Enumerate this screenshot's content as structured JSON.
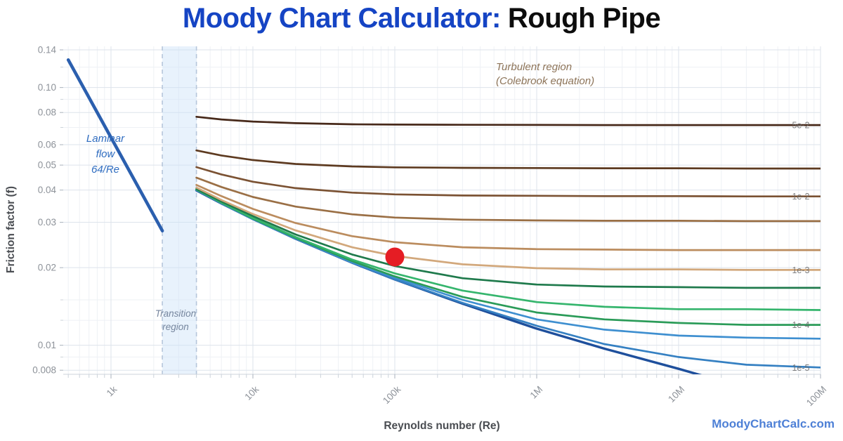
{
  "title": {
    "prefix": "Moody Chart Calculator:",
    "suffix": "Rough Pipe"
  },
  "watermark": {
    "text": "MoodyChartCalc.com"
  },
  "axes": {
    "x_label": "Reynolds number (Re)",
    "y_label": "Friction factor (f)"
  },
  "annotations": {
    "turbulent": {
      "line1": "Turbulent region",
      "line2": "(Colebrook equation)",
      "color": "#8d7459"
    },
    "laminar": {
      "line1": "Laminar",
      "line2": "flow",
      "line3": "64/Re",
      "color": "#2e6cc0"
    },
    "transition": {
      "line1": "Transition",
      "line2": "region",
      "color": "#76869e"
    }
  },
  "chart_data": {
    "type": "line",
    "title": "Moody Chart Calculator: Rough Pipe",
    "xlabel": "Reynolds number (Re)",
    "ylabel": "Friction factor (f)",
    "x_axis": {
      "scale": "log",
      "min": 500,
      "max": 110000000,
      "ticks": [
        {
          "label": "1k",
          "value": 1000
        },
        {
          "label": "10k",
          "value": 10000
        },
        {
          "label": "100k",
          "value": 100000
        },
        {
          "label": "1M",
          "value": 1000000
        },
        {
          "label": "10M",
          "value": 10000000
        },
        {
          "label": "100M",
          "value": 100000000
        }
      ],
      "minor_mantissas": [
        2,
        3,
        4,
        5,
        6,
        7,
        8,
        9
      ]
    },
    "y_axis": {
      "scale": "log",
      "min": 0.0077,
      "max": 0.145,
      "ticks": [
        {
          "label": "0.14",
          "value": 0.14
        },
        {
          "label": "0.10",
          "value": 0.1
        },
        {
          "label": "0.08",
          "value": 0.08
        },
        {
          "label": "0.06",
          "value": 0.06
        },
        {
          "label": "0.05",
          "value": 0.05
        },
        {
          "label": "0.04",
          "value": 0.04
        },
        {
          "label": "0.03",
          "value": 0.03
        },
        {
          "label": "0.02",
          "value": 0.02
        },
        {
          "label": "0.01",
          "value": 0.01
        },
        {
          "label": "0.008",
          "value": 0.008
        }
      ],
      "minor_gridlines": [
        0.12,
        0.09,
        0.07,
        0.015,
        0.0125,
        0.009
      ]
    },
    "laminar_line": {
      "name": "laminar-64-over-Re",
      "color": "#2b5fae",
      "width": 4.6,
      "points": [
        [
          500,
          0.128
        ],
        [
          2300,
          0.0278
        ]
      ]
    },
    "transition_band": {
      "re_start": 2300,
      "re_end": 4000,
      "fill": "rgba(205,226,248,0.45)",
      "border_color": "#b6c6db"
    },
    "series": [
      {
        "name": "rel-roughness-5e-2",
        "roughness": 0.05,
        "label": "5e-2",
        "color": "#47291a",
        "points": [
          [
            4000,
            0.077
          ],
          [
            6000,
            0.0752
          ],
          [
            10000,
            0.0738
          ],
          [
            20000,
            0.0727
          ],
          [
            50000,
            0.072
          ],
          [
            100000,
            0.0718
          ],
          [
            300000,
            0.0717
          ],
          [
            1000000,
            0.0716
          ],
          [
            3000000,
            0.0715
          ],
          [
            10000000,
            0.0715
          ],
          [
            30000000,
            0.0715
          ],
          [
            100000000,
            0.0715
          ]
        ]
      },
      {
        "name": "rel-roughness-2e-2",
        "roughness": 0.02,
        "label": "",
        "color": "#5d3a20",
        "points": [
          [
            4000,
            0.057
          ],
          [
            6000,
            0.0545
          ],
          [
            10000,
            0.0523
          ],
          [
            20000,
            0.0505
          ],
          [
            50000,
            0.0494
          ],
          [
            100000,
            0.049
          ],
          [
            300000,
            0.0488
          ],
          [
            1000000,
            0.0487
          ],
          [
            3000000,
            0.0486
          ],
          [
            10000000,
            0.0486
          ],
          [
            30000000,
            0.0485
          ],
          [
            100000000,
            0.0485
          ]
        ]
      },
      {
        "name": "rel-roughness-1e-2",
        "roughness": 0.01,
        "label": "1e-2",
        "color": "#7b5233",
        "points": [
          [
            4000,
            0.0491
          ],
          [
            6000,
            0.046
          ],
          [
            10000,
            0.0431
          ],
          [
            20000,
            0.0407
          ],
          [
            50000,
            0.0391
          ],
          [
            100000,
            0.0385
          ],
          [
            300000,
            0.0381
          ],
          [
            1000000,
            0.038
          ],
          [
            3000000,
            0.0379
          ],
          [
            10000000,
            0.0379
          ],
          [
            30000000,
            0.0378
          ],
          [
            100000000,
            0.0378
          ]
        ]
      },
      {
        "name": "rel-roughness-5e-3",
        "roughness": 0.005,
        "label": "",
        "color": "#9a6f45",
        "points": [
          [
            4000,
            0.0447
          ],
          [
            6000,
            0.0411
          ],
          [
            10000,
            0.0376
          ],
          [
            20000,
            0.0345
          ],
          [
            50000,
            0.0322
          ],
          [
            100000,
            0.0313
          ],
          [
            300000,
            0.0307
          ],
          [
            1000000,
            0.0305
          ],
          [
            3000000,
            0.0304
          ],
          [
            10000000,
            0.0304
          ],
          [
            30000000,
            0.0303
          ],
          [
            100000000,
            0.0303
          ]
        ]
      },
      {
        "name": "rel-roughness-2e-3",
        "roughness": 0.002,
        "label": "",
        "color": "#bb8c5e",
        "points": [
          [
            4000,
            0.0419
          ],
          [
            6000,
            0.0379
          ],
          [
            10000,
            0.0338
          ],
          [
            20000,
            0.0298
          ],
          [
            50000,
            0.0265
          ],
          [
            100000,
            0.0251
          ],
          [
            300000,
            0.024
          ],
          [
            1000000,
            0.0236
          ],
          [
            3000000,
            0.0235
          ],
          [
            10000000,
            0.0234
          ],
          [
            30000000,
            0.0234
          ],
          [
            100000000,
            0.0234
          ]
        ]
      },
      {
        "name": "rel-roughness-1e-3",
        "roughness": 0.001,
        "label": "1e-3",
        "color": "#d2a87c",
        "points": [
          [
            4000,
            0.0409
          ],
          [
            6000,
            0.0366
          ],
          [
            10000,
            0.0323
          ],
          [
            20000,
            0.0279
          ],
          [
            50000,
            0.024
          ],
          [
            100000,
            0.0222
          ],
          [
            300000,
            0.0206
          ],
          [
            1000000,
            0.0199
          ],
          [
            3000000,
            0.0197
          ],
          [
            10000000,
            0.0197
          ],
          [
            30000000,
            0.0196
          ],
          [
            100000000,
            0.0196
          ]
        ]
      },
      {
        "name": "rel-roughness-5e-4",
        "roughness": 0.0005,
        "label": "",
        "color": "#1f7a4c",
        "points": [
          [
            4000,
            0.0404
          ],
          [
            6000,
            0.0361
          ],
          [
            10000,
            0.0317
          ],
          [
            20000,
            0.0269
          ],
          [
            50000,
            0.0225
          ],
          [
            100000,
            0.0203
          ],
          [
            300000,
            0.0182
          ],
          [
            1000000,
            0.0172
          ],
          [
            3000000,
            0.0169
          ],
          [
            10000000,
            0.0168
          ],
          [
            30000000,
            0.0167
          ],
          [
            100000000,
            0.0167
          ]
        ]
      },
      {
        "name": "rel-roughness-2e-4",
        "roughness": 0.0002,
        "label": "",
        "color": "#35b56d",
        "points": [
          [
            4000,
            0.0403
          ],
          [
            6000,
            0.0358
          ],
          [
            10000,
            0.0312
          ],
          [
            20000,
            0.0263
          ],
          [
            50000,
            0.0215
          ],
          [
            100000,
            0.019
          ],
          [
            300000,
            0.0163
          ],
          [
            1000000,
            0.0147
          ],
          [
            3000000,
            0.0141
          ],
          [
            10000000,
            0.0138
          ],
          [
            30000000,
            0.0138
          ],
          [
            100000000,
            0.0137
          ]
        ]
      },
      {
        "name": "rel-roughness-1e-4",
        "roughness": 0.0001,
        "label": "1e-4",
        "color": "#2a9b58",
        "points": [
          [
            4000,
            0.0402
          ],
          [
            6000,
            0.0357
          ],
          [
            10000,
            0.031
          ],
          [
            20000,
            0.0261
          ],
          [
            50000,
            0.0212
          ],
          [
            100000,
            0.0185
          ],
          [
            300000,
            0.0154
          ],
          [
            1000000,
            0.0134
          ],
          [
            3000000,
            0.0126
          ],
          [
            10000000,
            0.0122
          ],
          [
            30000000,
            0.012
          ],
          [
            100000000,
            0.012
          ]
        ]
      },
      {
        "name": "rel-roughness-5e-5",
        "roughness": 5e-05,
        "label": "",
        "color": "#3e8fd0",
        "points": [
          [
            4000,
            0.0401
          ],
          [
            6000,
            0.0356
          ],
          [
            10000,
            0.0309
          ],
          [
            20000,
            0.026
          ],
          [
            50000,
            0.021
          ],
          [
            100000,
            0.0183
          ],
          [
            300000,
            0.015
          ],
          [
            1000000,
            0.0126
          ],
          [
            3000000,
            0.0115
          ],
          [
            10000000,
            0.0109
          ],
          [
            30000000,
            0.0107
          ],
          [
            100000000,
            0.0106
          ]
        ]
      },
      {
        "name": "rel-roughness-1e-5",
        "roughness": 1e-05,
        "label": "1e-5",
        "color": "#3580c2",
        "points": [
          [
            4000,
            0.04
          ],
          [
            6000,
            0.0355
          ],
          [
            10000,
            0.0308
          ],
          [
            20000,
            0.0259
          ],
          [
            50000,
            0.0209
          ],
          [
            100000,
            0.018
          ],
          [
            300000,
            0.0146
          ],
          [
            1000000,
            0.0119
          ],
          [
            3000000,
            0.0101
          ],
          [
            10000000,
            0.009
          ],
          [
            30000000,
            0.0084
          ],
          [
            100000000,
            0.0082
          ]
        ]
      },
      {
        "name": "smooth-pipe",
        "roughness": 0,
        "label": "",
        "color": "#1e4f9c",
        "width": 3.4,
        "points": [
          [
            4000,
            0.0399
          ],
          [
            6000,
            0.0355
          ],
          [
            10000,
            0.0309
          ],
          [
            20000,
            0.0259
          ],
          [
            50000,
            0.0209
          ],
          [
            100000,
            0.018
          ],
          [
            300000,
            0.0145
          ],
          [
            1000000,
            0.0116
          ],
          [
            3000000,
            0.0097
          ],
          [
            10000000,
            0.0081
          ],
          [
            15000000,
            0.0076
          ]
        ]
      }
    ],
    "marker": {
      "re": 100000,
      "f": 0.022,
      "color": "#e51d24",
      "radius": 13.5
    }
  }
}
